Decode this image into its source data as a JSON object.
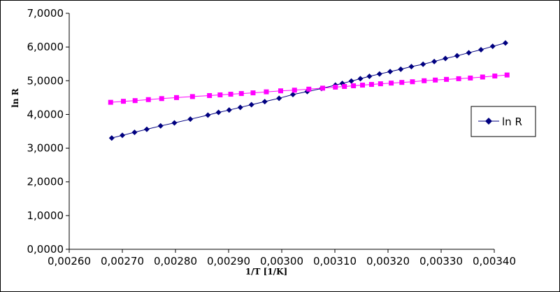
{
  "chart_data": {
    "type": "scatter",
    "xlabel": "1/T [1/K]",
    "ylabel": "ln R",
    "xlim": [
      0.0026,
      0.0034
    ],
    "ylim": [
      0,
      7
    ],
    "x_tick_labels": [
      "0,00260",
      "0,00270",
      "0,00280",
      "0,00290",
      "0,00300",
      "0,00310",
      "0,00320",
      "0,00330",
      "0,00340"
    ],
    "x_ticks": [
      0.0026,
      0.0027,
      0.0028,
      0.0029,
      0.003,
      0.0031,
      0.0032,
      0.0033,
      0.0034
    ],
    "y_tick_labels": [
      "0,0000",
      "1,0000",
      "2,0000",
      "3,0000",
      "4,0000",
      "5,0000",
      "6,0000",
      "7,0000"
    ],
    "y_ticks": [
      0,
      1,
      2,
      3,
      4,
      5,
      6,
      7
    ],
    "grid": false,
    "legend_position": "right",
    "series": [
      {
        "name": "ln R",
        "color": "#000080",
        "marker": "diamond",
        "show_in_legend": true,
        "x": [
          0.00268,
          0.0027,
          0.002723,
          0.002746,
          0.002772,
          0.002798,
          0.002828,
          0.002861,
          0.002881,
          0.002901,
          0.002922,
          0.002943,
          0.002968,
          0.002995,
          0.003021,
          0.003048,
          0.003075,
          0.003101,
          0.003114,
          0.003131,
          0.003148,
          0.003165,
          0.003184,
          0.003204,
          0.003224,
          0.003244,
          0.003266,
          0.003287,
          0.003308,
          0.00333,
          0.003352,
          0.003375,
          0.003397,
          0.003421
        ],
        "y": [
          3.3,
          3.38,
          3.47,
          3.56,
          3.66,
          3.75,
          3.86,
          3.98,
          4.06,
          4.13,
          4.21,
          4.29,
          4.38,
          4.48,
          4.59,
          4.68,
          4.77,
          4.87,
          4.92,
          4.99,
          5.06,
          5.13,
          5.2,
          5.27,
          5.34,
          5.42,
          5.49,
          5.57,
          5.66,
          5.74,
          5.83,
          5.92,
          6.02,
          6.12
        ]
      },
      {
        "color": "#ff00ff",
        "marker": "square",
        "show_in_legend": false,
        "x": [
          0.002678,
          0.002702,
          0.002724,
          0.002749,
          0.002774,
          0.002802,
          0.002832,
          0.002864,
          0.002884,
          0.002904,
          0.002924,
          0.002946,
          0.002971,
          0.002998,
          0.003024,
          0.003051,
          0.003077,
          0.003101,
          0.003118,
          0.003135,
          0.003152,
          0.003169,
          0.003186,
          0.003206,
          0.003226,
          0.003246,
          0.003268,
          0.003289,
          0.00331,
          0.003333,
          0.003355,
          0.003378,
          0.003401,
          0.003424
        ],
        "y": [
          4.36,
          4.39,
          4.41,
          4.44,
          4.47,
          4.5,
          4.53,
          4.56,
          4.58,
          4.6,
          4.62,
          4.64,
          4.67,
          4.7,
          4.72,
          4.75,
          4.78,
          4.81,
          4.83,
          4.85,
          4.87,
          4.89,
          4.91,
          4.93,
          4.95,
          4.97,
          5.0,
          5.02,
          5.04,
          5.06,
          5.08,
          5.11,
          5.14,
          5.17
        ]
      }
    ]
  }
}
